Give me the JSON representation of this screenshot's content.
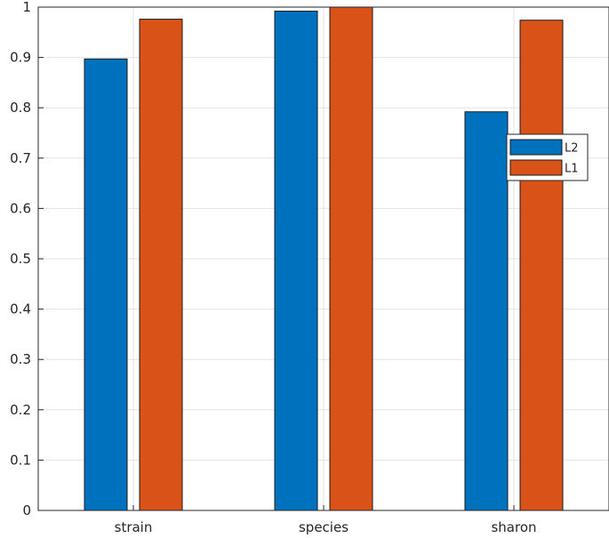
{
  "chart_data": {
    "type": "bar",
    "categories": [
      "strain",
      "species",
      "sharon"
    ],
    "series": [
      {
        "name": "L2",
        "values": [
          0.897,
          0.992,
          0.792
        ],
        "color": "#0072BD"
      },
      {
        "name": "L1",
        "values": [
          0.976,
          1.0,
          0.974
        ],
        "color": "#D95319"
      }
    ],
    "ylim": [
      0,
      1
    ],
    "yticks": [
      "0",
      "0.1",
      "0.2",
      "0.3",
      "0.4",
      "0.5",
      "0.6",
      "0.7",
      "0.8",
      "0.9",
      "1"
    ],
    "grid": true,
    "legend_position": "right",
    "title": "",
    "xlabel": "",
    "ylabel": ""
  }
}
